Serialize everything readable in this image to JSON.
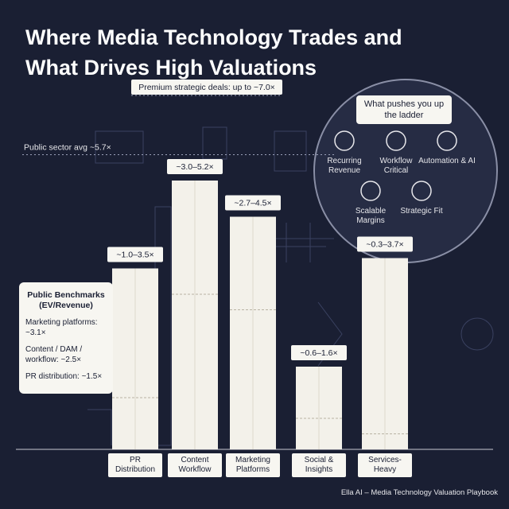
{
  "chart_data": {
    "type": "bar",
    "title": "Where Media Technology Trades and What Drives High Valuations",
    "categories": [
      "PR Distribution",
      "Content Workflow",
      "Marketing Platforms",
      "Social & Insights",
      "Services-Heavy"
    ],
    "ranges": [
      [
        1.0,
        3.5
      ],
      [
        3.0,
        5.2
      ],
      [
        2.7,
        4.5
      ],
      [
        0.6,
        1.6
      ],
      [
        0.3,
        3.7
      ]
    ],
    "value_labels": [
      "~1.0–3.5×",
      "~3.0–5.2×",
      "~2.7–4.5×",
      "~0.6–1.6×",
      "~0.3–3.7×"
    ],
    "color": "#f3f1ea",
    "ylim": [
      0,
      8.5
    ],
    "reference_lines": [
      {
        "value": 5.7,
        "label": "Public sector avg ~5.7×"
      },
      {
        "value": 7.0,
        "label": "Premium strategic deals: up to ~7.0×"
      }
    ],
    "benchmarks": {
      "title": "Public Benchmarks (EV/Revenue)",
      "items": [
        "Marketing platforms: ~3.1×",
        "Content / DAM / workflow: ~2.5×",
        "PR distribution: ~1.5×"
      ]
    },
    "ladder": {
      "title": "What pushes you up the ladder",
      "items": [
        "Recurring Revenue",
        "Workflow Critical",
        "Automation & AI",
        "Scalable Margins",
        "Strategic Fit"
      ]
    },
    "footer": "Ella AI – Media Technology Valuation Playbook"
  }
}
